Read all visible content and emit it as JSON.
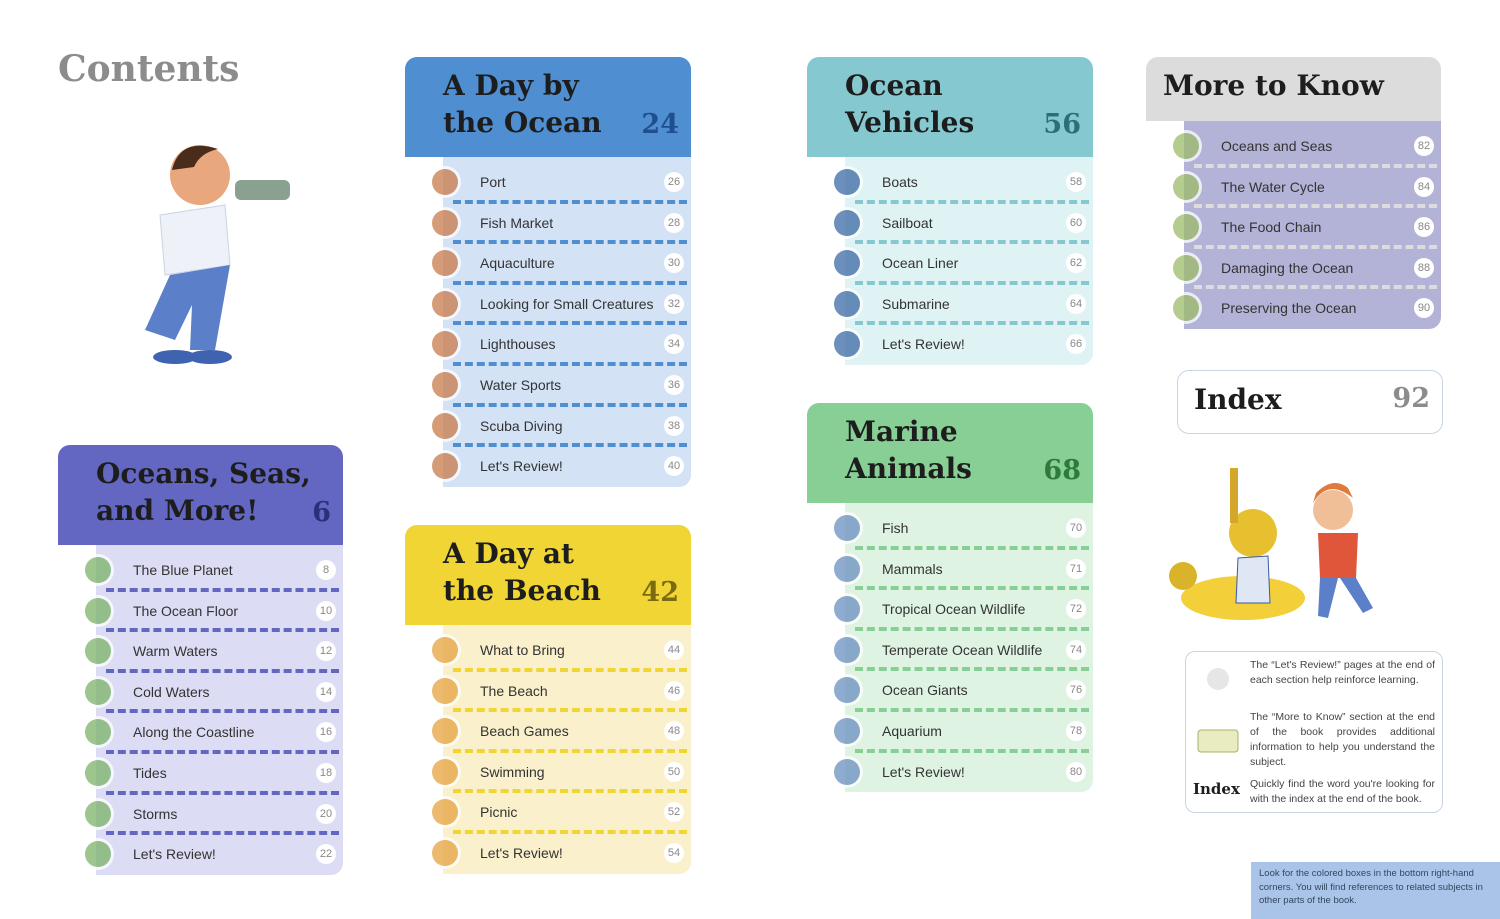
{
  "title": "Contents",
  "sections": [
    {
      "title_lines": [
        "Oceans, Seas,",
        "and More!"
      ],
      "page": 6,
      "items": [
        {
          "label": "The Blue Planet",
          "page": 8
        },
        {
          "label": "The Ocean Floor",
          "page": 10
        },
        {
          "label": "Warm Waters",
          "page": 12
        },
        {
          "label": "Cold Waters",
          "page": 14
        },
        {
          "label": "Along the Coastline",
          "page": 16
        },
        {
          "label": "Tides",
          "page": 18
        },
        {
          "label": "Storms",
          "page": 20
        },
        {
          "label": "Let's Review!",
          "page": 22
        }
      ]
    },
    {
      "title_lines": [
        "A Day by",
        "the Ocean"
      ],
      "page": 24,
      "items": [
        {
          "label": "Port",
          "page": 26
        },
        {
          "label": "Fish Market",
          "page": 28
        },
        {
          "label": "Aquaculture",
          "page": 30
        },
        {
          "label": "Looking for Small Creatures",
          "page": 32
        },
        {
          "label": "Lighthouses",
          "page": 34
        },
        {
          "label": "Water Sports",
          "page": 36
        },
        {
          "label": "Scuba Diving",
          "page": 38
        },
        {
          "label": "Let's Review!",
          "page": 40
        }
      ]
    },
    {
      "title_lines": [
        "A Day at",
        "the Beach"
      ],
      "page": 42,
      "items": [
        {
          "label": "What to Bring",
          "page": 44
        },
        {
          "label": "The Beach",
          "page": 46
        },
        {
          "label": "Beach Games",
          "page": 48
        },
        {
          "label": "Swimming",
          "page": 50
        },
        {
          "label": "Picnic",
          "page": 52
        },
        {
          "label": "Let's Review!",
          "page": 54
        }
      ]
    },
    {
      "title_lines": [
        "Ocean",
        "Vehicles"
      ],
      "page": 56,
      "items": [
        {
          "label": "Boats",
          "page": 58
        },
        {
          "label": "Sailboat",
          "page": 60
        },
        {
          "label": "Ocean Liner",
          "page": 62
        },
        {
          "label": "Submarine",
          "page": 64
        },
        {
          "label": "Let's Review!",
          "page": 66
        }
      ]
    },
    {
      "title_lines": [
        "Marine",
        "Animals"
      ],
      "page": 68,
      "items": [
        {
          "label": "Fish",
          "page": 70
        },
        {
          "label": "Mammals",
          "page": 71
        },
        {
          "label": "Tropical Ocean Wildlife",
          "page": 72
        },
        {
          "label": "Temperate Ocean Wildlife",
          "page": 74
        },
        {
          "label": "Ocean Giants",
          "page": 76
        },
        {
          "label": "Aquarium",
          "page": 78
        },
        {
          "label": "Let's Review!",
          "page": 80
        }
      ]
    },
    {
      "title_lines": [
        "More to Know"
      ],
      "items": [
        {
          "label": "Oceans and Seas",
          "page": 82
        },
        {
          "label": "The Water Cycle",
          "page": 84
        },
        {
          "label": "The Food Chain",
          "page": 86
        },
        {
          "label": "Damaging the Ocean",
          "page": 88
        },
        {
          "label": "Preserving the Ocean",
          "page": 90
        }
      ]
    }
  ],
  "index": {
    "title": "Index",
    "page": 92
  },
  "legend": {
    "entries": [
      "The “Let's Review!” pages at the end of each section help reinforce learning.",
      "The “More to Know” section at the end of the book provides additional information to help you understand the subject.",
      "Quickly find the word you're looking for with the index at the end of the book."
    ],
    "index_label": "Index"
  },
  "note": "Look for the colored boxes in the bottom right-hand corners. You will find references to related subjects in other parts of the book."
}
